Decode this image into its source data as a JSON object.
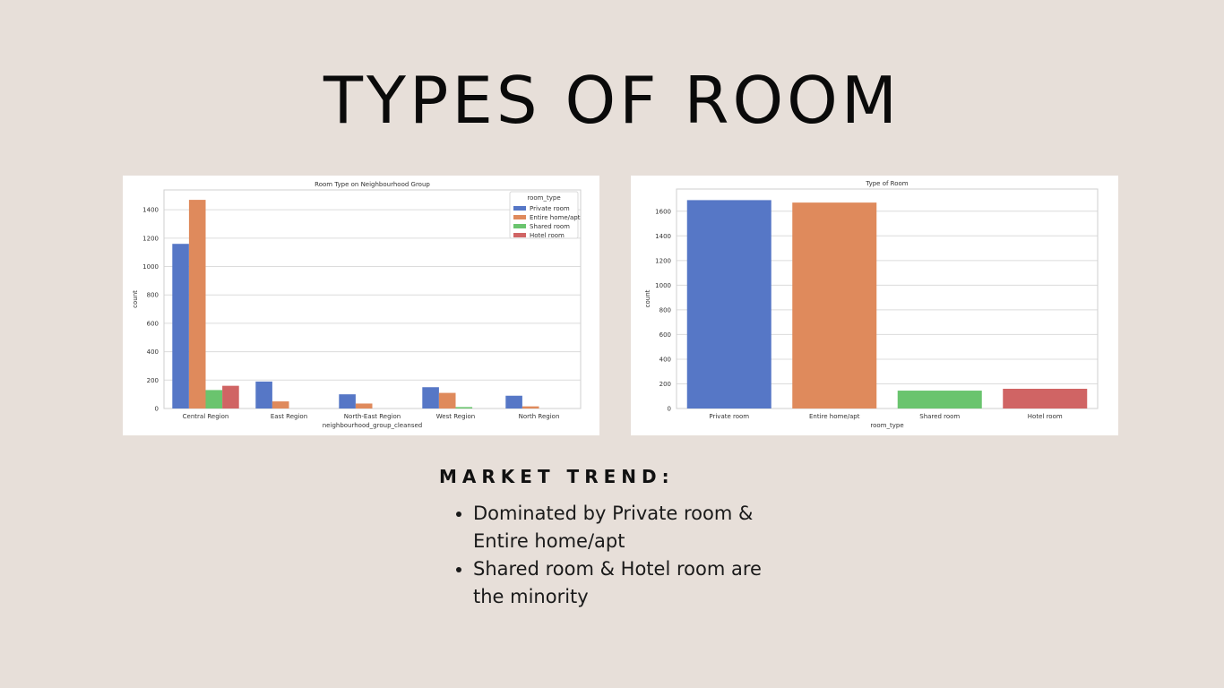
{
  "slide": {
    "title": "TYPES OF ROOM"
  },
  "market_trend": {
    "heading": "MARKET TREND:",
    "bullets": [
      "Dominated by Private room & Entire home/apt",
      "Shared room & Hotel room are the minority"
    ]
  },
  "chart_data": [
    {
      "type": "bar",
      "title": "Room Type on Neighbourhood Group",
      "xlabel": "neighbourhood_group_cleansed",
      "ylabel": "count",
      "categories": [
        "Central Region",
        "East Region",
        "North-East Region",
        "West Region",
        "North Region"
      ],
      "series": [
        {
          "name": "Private room",
          "color": "#5677c6",
          "values": [
            1160,
            190,
            100,
            150,
            90
          ]
        },
        {
          "name": "Entire home/apt",
          "color": "#df8a5c",
          "values": [
            1470,
            50,
            35,
            110,
            15
          ]
        },
        {
          "name": "Shared room",
          "color": "#6ac46e",
          "values": [
            130,
            0,
            0,
            10,
            0
          ]
        },
        {
          "name": "Hotel room",
          "color": "#d06464",
          "values": [
            160,
            0,
            0,
            0,
            0
          ]
        }
      ],
      "legend_title": "room_type",
      "legend_placement": "top-right",
      "ylim": [
        0,
        1540
      ],
      "yticks": [
        0,
        200,
        400,
        600,
        800,
        1000,
        1200,
        1400
      ],
      "grid": true
    },
    {
      "type": "bar",
      "title": "Type of Room",
      "xlabel": "room_type",
      "ylabel": "count",
      "categories": [
        "Private room",
        "Entire home/apt",
        "Shared room",
        "Hotel room"
      ],
      "colors": [
        "#5677c6",
        "#df8a5c",
        "#6ac46e",
        "#d06464"
      ],
      "values": [
        1690,
        1670,
        145,
        160
      ],
      "ylim": [
        0,
        1780
      ],
      "yticks": [
        0,
        200,
        400,
        600,
        800,
        1000,
        1200,
        1400,
        1600
      ],
      "grid": true
    }
  ]
}
